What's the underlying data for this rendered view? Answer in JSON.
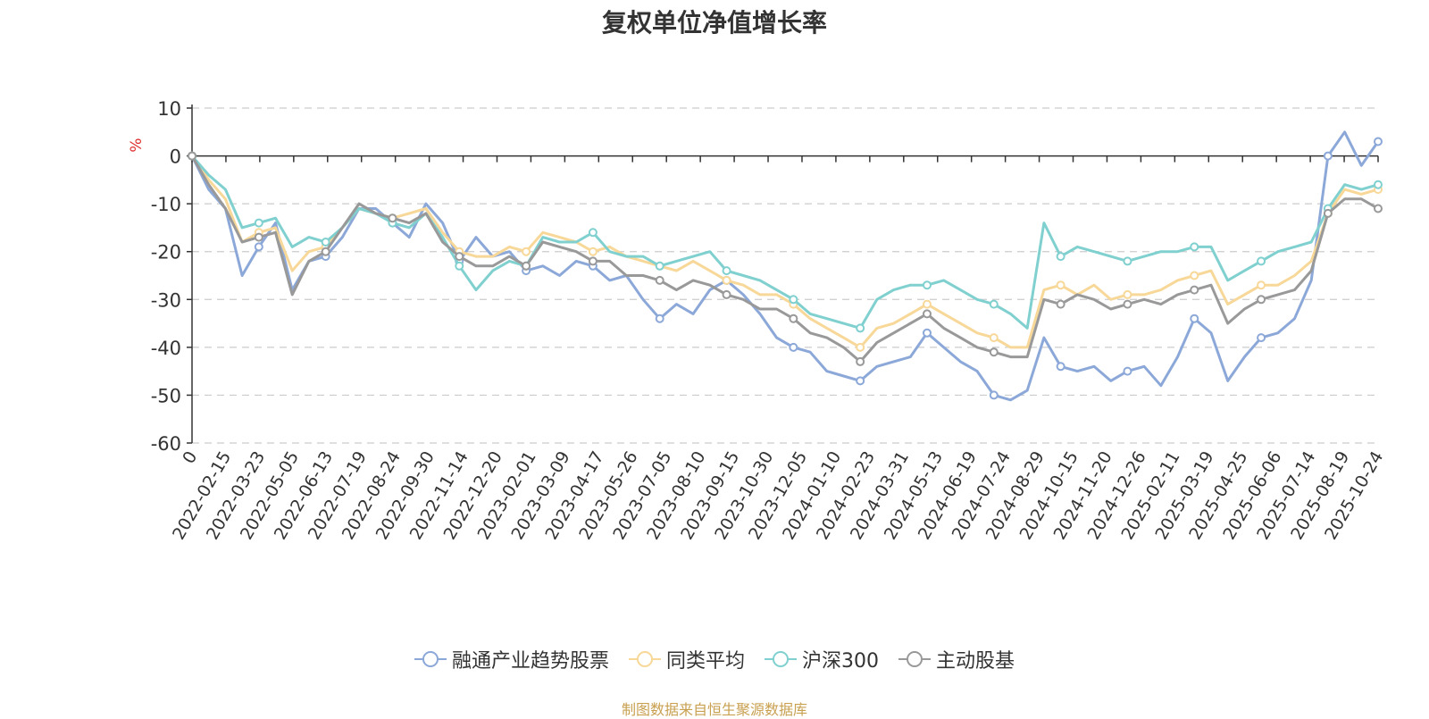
{
  "title": "复权单位净值增长率",
  "source": "制图数据来自恒生聚源数据库",
  "source_color": "#c8a050",
  "chart_data": {
    "type": "line",
    "title": "复权单位净值增长率",
    "ylabel": "%",
    "ylabel_color": "#e03030",
    "ylim": [
      -60,
      10
    ],
    "yticks": [
      10,
      0,
      -10,
      -20,
      -30,
      -40,
      -50,
      -60
    ],
    "x_tick_labels": [
      "0",
      "2022-02-15",
      "2022-03-23",
      "2022-05-05",
      "2022-06-13",
      "2022-07-19",
      "2022-08-24",
      "2022-09-30",
      "2022-11-14",
      "2022-12-20",
      "2023-02-01",
      "2023-03-09",
      "2023-04-17",
      "2023-05-26",
      "2023-07-05",
      "2023-08-10",
      "2023-09-15",
      "2023-10-30",
      "2023-12-05",
      "2024-01-10",
      "2024-02-23",
      "2024-03-31",
      "2024-05-13",
      "2024-06-19",
      "2024-07-24",
      "2024-08-29",
      "2024-10-15",
      "2024-11-20",
      "2024-12-26",
      "2025-02-11",
      "2025-03-19",
      "2025-04-25",
      "2025-06-06",
      "2025-07-14",
      "2025-08-19",
      "2025-10-24"
    ],
    "grid": "horizontal-dashed",
    "legend_position": "bottom",
    "series": [
      {
        "name": "融通产业趋势股票",
        "color": "#8ca8d8",
        "values": [
          0,
          -7,
          -11,
          -25,
          -19,
          -14,
          -28,
          -22,
          -21,
          -17,
          -11,
          -11,
          -14,
          -17,
          -10,
          -14,
          -22,
          -17,
          -21,
          -20,
          -24,
          -23,
          -25,
          -22,
          -23,
          -26,
          -25,
          -30,
          -34,
          -31,
          -33,
          -28,
          -26,
          -29,
          -33,
          -38,
          -40,
          -41,
          -45,
          -46,
          -47,
          -44,
          -43,
          -42,
          -37,
          -40,
          -43,
          -45,
          -50,
          -51,
          -49,
          -38,
          -44,
          -45,
          -44,
          -47,
          -45,
          -44,
          -48,
          -42,
          -34,
          -37,
          -47,
          -42,
          -38,
          -37,
          -34,
          -26,
          0,
          5,
          -2,
          3
        ]
      },
      {
        "name": "同类平均",
        "color": "#f8d898",
        "values": [
          0,
          -5,
          -9,
          -18,
          -16,
          -15,
          -24,
          -20,
          -19,
          -15,
          -11,
          -12,
          -13,
          -12,
          -11,
          -16,
          -20,
          -21,
          -21,
          -19,
          -20,
          -16,
          -17,
          -18,
          -20,
          -19,
          -21,
          -22,
          -23,
          -24,
          -22,
          -24,
          -26,
          -27,
          -29,
          -29,
          -31,
          -34,
          -36,
          -38,
          -40,
          -36,
          -35,
          -33,
          -31,
          -33,
          -35,
          -37,
          -38,
          -40,
          -40,
          -28,
          -27,
          -29,
          -27,
          -30,
          -29,
          -29,
          -28,
          -26,
          -25,
          -24,
          -31,
          -29,
          -27,
          -27,
          -25,
          -22,
          -12,
          -7,
          -8,
          -7
        ]
      },
      {
        "name": "沪深300",
        "color": "#80d0d0",
        "values": [
          0,
          -4,
          -7,
          -15,
          -14,
          -13,
          -19,
          -17,
          -18,
          -15,
          -11,
          -12,
          -14,
          -15,
          -12,
          -17,
          -23,
          -28,
          -24,
          -22,
          -23,
          -17,
          -18,
          -18,
          -16,
          -20,
          -21,
          -21,
          -23,
          -22,
          -21,
          -20,
          -24,
          -25,
          -26,
          -28,
          -30,
          -33,
          -34,
          -35,
          -36,
          -30,
          -28,
          -27,
          -27,
          -26,
          -28,
          -30,
          -31,
          -33,
          -36,
          -14,
          -21,
          -19,
          -20,
          -21,
          -22,
          -21,
          -20,
          -20,
          -19,
          -19,
          -26,
          -24,
          -22,
          -20,
          -19,
          -18,
          -11,
          -6,
          -7,
          -6
        ]
      },
      {
        "name": "主动股基",
        "color": "#999999",
        "values": [
          0,
          -6,
          -11,
          -18,
          -17,
          -16,
          -29,
          -22,
          -20,
          -15,
          -10,
          -12,
          -13,
          -14,
          -12,
          -18,
          -21,
          -23,
          -23,
          -21,
          -23,
          -18,
          -19,
          -20,
          -22,
          -22,
          -25,
          -25,
          -26,
          -28,
          -26,
          -27,
          -29,
          -30,
          -32,
          -32,
          -34,
          -37,
          -38,
          -40,
          -43,
          -39,
          -37,
          -35,
          -33,
          -36,
          -38,
          -40,
          -41,
          -42,
          -42,
          -30,
          -31,
          -29,
          -30,
          -32,
          -31,
          -30,
          -31,
          -29,
          -28,
          -27,
          -35,
          -32,
          -30,
          -29,
          -28,
          -24,
          -12,
          -9,
          -9,
          -11
        ]
      }
    ]
  }
}
